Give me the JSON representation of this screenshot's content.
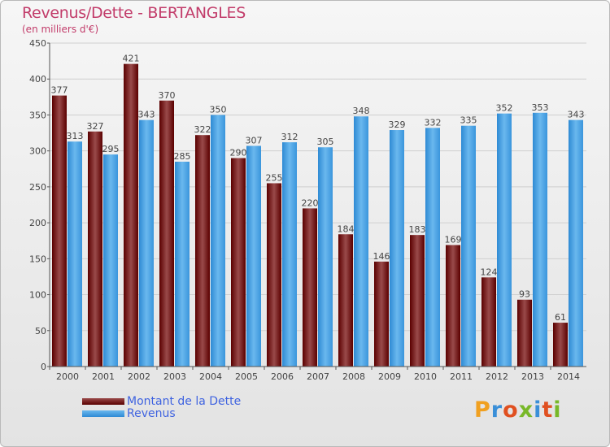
{
  "colors": {
    "title": "#c23c6a",
    "legend_text": "#3f63e0",
    "debt_top": "#9a4a4a",
    "debt_bottom": "#5a0000",
    "revenue_top": "#6ab8ee",
    "revenue_bottom": "#2e8ad4"
  },
  "logo": {
    "text": "Proxiti"
  },
  "chart_data": {
    "type": "bar",
    "title": "Revenus/Dette - BERTANGLES",
    "subtitle": "(en milliers d'€)",
    "xlabel": "",
    "ylabel": "",
    "categories": [
      "2000",
      "2001",
      "2002",
      "2003",
      "2004",
      "2005",
      "2006",
      "2007",
      "2008",
      "2009",
      "2010",
      "2011",
      "2012",
      "2013",
      "2014"
    ],
    "series": [
      {
        "name": "Montant de la Dette",
        "values": [
          377,
          327,
          421,
          370,
          322,
          290,
          255,
          220,
          184,
          146,
          183,
          169,
          124,
          93,
          61
        ]
      },
      {
        "name": "Revenus",
        "values": [
          313,
          295,
          343,
          285,
          350,
          307,
          312,
          305,
          348,
          329,
          332,
          335,
          352,
          353,
          343
        ]
      }
    ],
    "ylim": [
      0,
      450
    ],
    "yticks": [
      0,
      50,
      100,
      150,
      200,
      250,
      300,
      350,
      400,
      450
    ],
    "grid": true,
    "legend_position": "bottom-left"
  }
}
